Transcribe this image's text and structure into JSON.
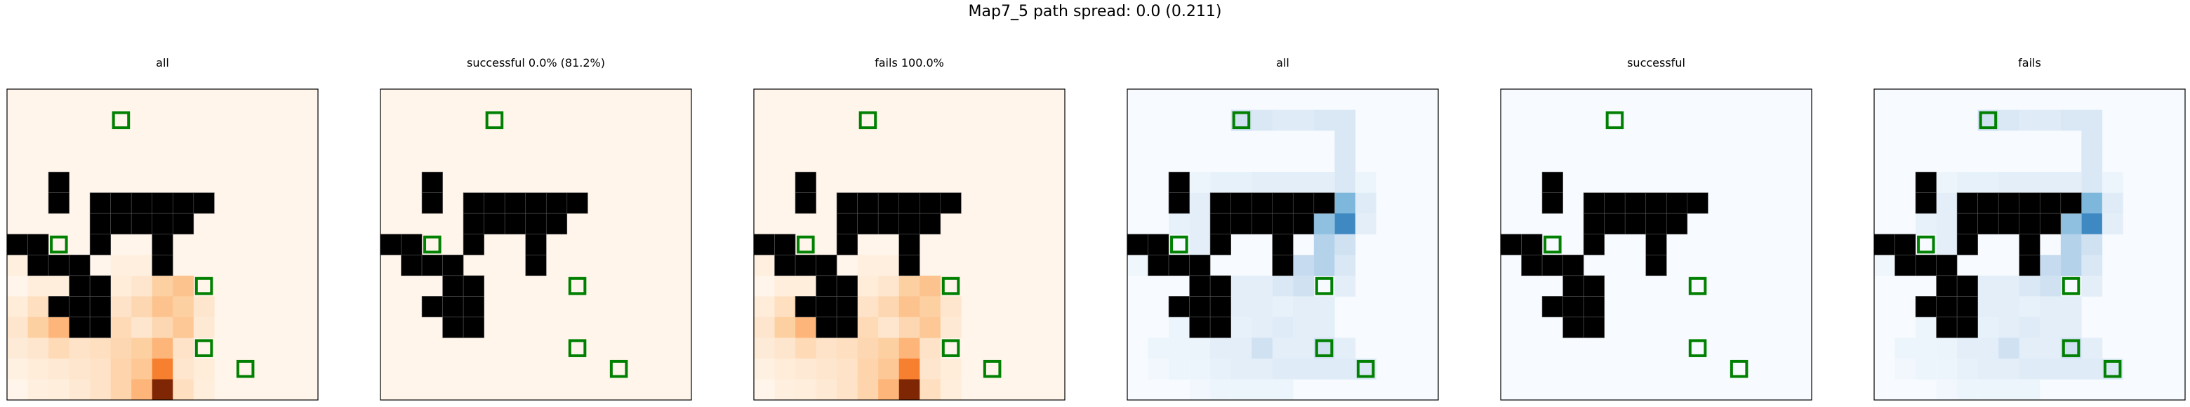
{
  "figure": {
    "title": "Map7_5 path spread: 0.0 (0.211)"
  },
  "chart_data": {
    "type": "heatmap",
    "title": "Map7_5 path spread: 0.0 (0.211)",
    "grid_size": [
      15,
      15
    ],
    "walls": [
      [
        2,
        4
      ],
      [
        2,
        5
      ],
      [
        4,
        5
      ],
      [
        5,
        5
      ],
      [
        6,
        5
      ],
      [
        7,
        5
      ],
      [
        8,
        5
      ],
      [
        9,
        5
      ],
      [
        4,
        6
      ],
      [
        5,
        6
      ],
      [
        6,
        6
      ],
      [
        7,
        6
      ],
      [
        8,
        6
      ],
      [
        4,
        7
      ],
      [
        7,
        7
      ],
      [
        0,
        7
      ],
      [
        1,
        7
      ],
      [
        1,
        8
      ],
      [
        2,
        8
      ],
      [
        3,
        8
      ],
      [
        7,
        8
      ],
      [
        3,
        9
      ],
      [
        4,
        9
      ],
      [
        2,
        10
      ],
      [
        3,
        10
      ],
      [
        4,
        10
      ],
      [
        3,
        11
      ],
      [
        4,
        11
      ]
    ],
    "targets": [
      [
        5,
        1
      ],
      [
        2,
        7
      ],
      [
        9,
        9
      ],
      [
        9,
        12
      ],
      [
        11,
        13
      ]
    ],
    "panels": [
      {
        "title": "all",
        "colormap": "Oranges",
        "dist": "all"
      },
      {
        "title": "successful 0.0% (81.2%)",
        "colormap": "Oranges",
        "dist": "successful"
      },
      {
        "title": "fails 100.0%",
        "colormap": "Oranges",
        "dist": "fails"
      },
      {
        "title": "all",
        "colormap": "Blues",
        "dist": "all"
      },
      {
        "title": "successful",
        "colormap": "Blues",
        "dist": "successful"
      },
      {
        "title": "fails",
        "colormap": "Blues",
        "dist": "fails"
      }
    ],
    "heat_values": {
      "Oranges": [
        [
          0,
          8,
          0.04
        ],
        [
          1,
          8,
          0.03
        ],
        [
          1,
          9,
          0.05
        ],
        [
          2,
          9,
          0.05
        ],
        [
          0,
          10,
          0.06
        ],
        [
          1,
          10,
          0.15
        ],
        [
          0,
          11,
          0.1
        ],
        [
          1,
          11,
          0.25
        ],
        [
          2,
          11,
          0.35
        ],
        [
          5,
          9,
          0.06
        ],
        [
          5,
          10,
          0.12
        ],
        [
          5,
          11,
          0.18
        ],
        [
          6,
          11,
          0.1
        ],
        [
          6,
          9,
          0.1
        ],
        [
          6,
          10,
          0.2
        ],
        [
          7,
          9,
          0.25
        ],
        [
          7,
          10,
          0.3
        ],
        [
          8,
          9,
          0.3
        ],
        [
          8,
          10,
          0.25
        ],
        [
          9,
          10,
          0.1
        ],
        [
          0,
          12,
          0.07
        ],
        [
          1,
          12,
          0.1
        ],
        [
          2,
          12,
          0.18
        ],
        [
          3,
          12,
          0.12
        ],
        [
          4,
          12,
          0.15
        ],
        [
          5,
          12,
          0.2
        ],
        [
          6,
          12,
          0.25
        ],
        [
          7,
          12,
          0.35
        ],
        [
          8,
          12,
          0.12
        ],
        [
          0,
          13,
          0.03
        ],
        [
          1,
          13,
          0.06
        ],
        [
          2,
          13,
          0.08
        ],
        [
          3,
          13,
          0.1
        ],
        [
          4,
          13,
          0.12
        ],
        [
          5,
          13,
          0.22
        ],
        [
          6,
          13,
          0.28
        ],
        [
          7,
          13,
          0.55
        ],
        [
          8,
          13,
          0.1
        ],
        [
          9,
          13,
          0.06
        ],
        [
          1,
          14,
          0.04
        ],
        [
          2,
          14,
          0.05
        ],
        [
          3,
          14,
          0.08
        ],
        [
          4,
          14,
          0.12
        ],
        [
          5,
          14,
          0.22
        ],
        [
          6,
          14,
          0.35
        ],
        [
          7,
          14,
          1.0
        ],
        [
          8,
          14,
          0.15
        ],
        [
          9,
          14,
          0.05
        ],
        [
          7,
          11,
          0.2
        ],
        [
          8,
          11,
          0.28
        ],
        [
          9,
          11,
          0.08
        ],
        [
          6,
          8,
          0.04
        ],
        [
          5,
          8,
          0.04
        ]
      ],
      "Blues": [
        [
          5,
          1,
          0.2
        ],
        [
          6,
          1,
          0.15
        ],
        [
          7,
          1,
          0.12
        ],
        [
          8,
          1,
          0.12
        ],
        [
          9,
          1,
          0.15
        ],
        [
          10,
          1,
          0.15
        ],
        [
          10,
          2,
          0.15
        ],
        [
          10,
          3,
          0.15
        ],
        [
          10,
          4,
          0.15
        ],
        [
          9,
          4,
          0.1
        ],
        [
          8,
          4,
          0.1
        ],
        [
          7,
          4,
          0.1
        ],
        [
          6,
          4,
          0.1
        ],
        [
          5,
          4,
          0.08
        ],
        [
          4,
          4,
          0.08
        ],
        [
          3,
          4,
          0.05
        ],
        [
          11,
          4,
          0.05
        ],
        [
          3,
          5,
          0.1
        ],
        [
          3,
          6,
          0.1
        ],
        [
          3,
          7,
          0.1
        ],
        [
          2,
          6,
          0.08
        ],
        [
          1,
          8,
          0.04
        ],
        [
          0,
          8,
          0.04
        ],
        [
          10,
          5,
          0.45
        ],
        [
          10,
          6,
          0.65
        ],
        [
          9,
          5,
          0.45
        ],
        [
          9,
          6,
          0.4
        ],
        [
          11,
          5,
          0.12
        ],
        [
          11,
          6,
          0.1
        ],
        [
          9,
          7,
          0.3
        ],
        [
          10,
          7,
          0.2
        ],
        [
          9,
          8,
          0.3
        ],
        [
          8,
          8,
          0.25
        ],
        [
          10,
          8,
          0.15
        ],
        [
          8,
          9,
          0.2
        ],
        [
          7,
          9,
          0.15
        ],
        [
          6,
          9,
          0.1
        ],
        [
          5,
          9,
          0.1
        ],
        [
          10,
          9,
          0.1
        ],
        [
          5,
          10,
          0.1
        ],
        [
          6,
          10,
          0.1
        ],
        [
          7,
          10,
          0.08
        ],
        [
          8,
          10,
          0.1
        ],
        [
          9,
          10,
          0.1
        ],
        [
          2,
          11,
          0.05
        ],
        [
          5,
          11,
          0.08
        ],
        [
          6,
          11,
          0.1
        ],
        [
          7,
          11,
          0.12
        ],
        [
          8,
          11,
          0.1
        ],
        [
          9,
          11,
          0.1
        ],
        [
          1,
          12,
          0.05
        ],
        [
          2,
          12,
          0.05
        ],
        [
          3,
          12,
          0.06
        ],
        [
          4,
          12,
          0.1
        ],
        [
          5,
          12,
          0.1
        ],
        [
          6,
          12,
          0.2
        ],
        [
          7,
          12,
          0.1
        ],
        [
          8,
          12,
          0.1
        ],
        [
          9,
          12,
          0.2
        ],
        [
          10,
          12,
          0.1
        ],
        [
          1,
          13,
          0.03
        ],
        [
          2,
          13,
          0.05
        ],
        [
          3,
          13,
          0.05
        ],
        [
          4,
          13,
          0.08
        ],
        [
          5,
          13,
          0.1
        ],
        [
          6,
          13,
          0.1
        ],
        [
          7,
          13,
          0.12
        ],
        [
          8,
          13,
          0.12
        ],
        [
          9,
          13,
          0.12
        ],
        [
          10,
          13,
          0.12
        ],
        [
          11,
          13,
          0.15
        ],
        [
          3,
          14,
          0.03
        ],
        [
          4,
          14,
          0.05
        ],
        [
          5,
          14,
          0.05
        ],
        [
          6,
          14,
          0.05
        ],
        [
          7,
          14,
          0.05
        ]
      ]
    }
  }
}
